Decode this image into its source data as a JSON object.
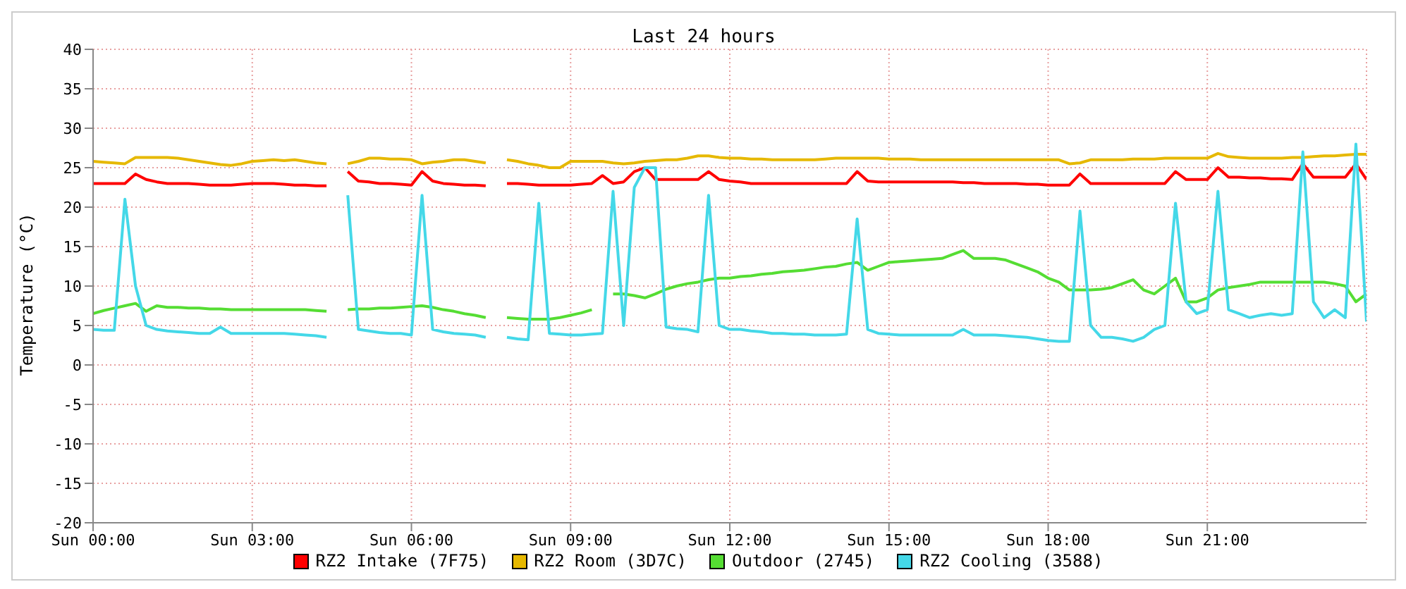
{
  "chart_data": {
    "type": "line",
    "title": "Last 24 hours",
    "ylabel": "Temperature (°C)",
    "categories": [
      "Sun 00:00",
      null,
      null,
      null,
      null,
      null,
      null,
      null,
      null,
      null,
      null,
      null,
      null,
      null,
      null,
      "Sun 03:00",
      null,
      null,
      null,
      null,
      null,
      null,
      null,
      null,
      null,
      null,
      null,
      null,
      null,
      null,
      "Sun 06:00",
      null,
      null,
      null,
      null,
      null,
      null,
      null,
      null,
      null,
      null,
      null,
      null,
      null,
      null,
      "Sun 09:00",
      null,
      null,
      null,
      null,
      null,
      null,
      null,
      null,
      null,
      null,
      null,
      null,
      null,
      null,
      "Sun 12:00",
      null,
      null,
      null,
      null,
      null,
      null,
      null,
      null,
      null,
      null,
      null,
      null,
      null,
      null,
      "Sun 15:00",
      null,
      null,
      null,
      null,
      null,
      null,
      null,
      null,
      null,
      null,
      null,
      null,
      null,
      null,
      "Sun 18:00",
      null,
      null,
      null,
      null,
      null,
      null,
      null,
      null,
      null,
      null,
      null,
      null,
      null,
      null,
      "Sun 21:00",
      null,
      null,
      null,
      null,
      null,
      null,
      null,
      null,
      null,
      null,
      null,
      null,
      null,
      null,
      null
    ],
    "ylim": [
      -20,
      40
    ],
    "yticks": [
      -20,
      -15,
      -10,
      -5,
      0,
      5,
      10,
      15,
      20,
      25,
      30,
      35,
      40
    ],
    "grid": true,
    "legend": "bottom",
    "marker": "none",
    "line_style": "solid",
    "series": [
      {
        "name": "RZ2 Intake (7F75)",
        "color": "#ff0000",
        "values": [
          23,
          23,
          23,
          23,
          24.2,
          23.5,
          23.2,
          23,
          23,
          23,
          22.9,
          22.8,
          22.8,
          22.8,
          22.9,
          23,
          23,
          23,
          22.9,
          22.8,
          22.8,
          22.7,
          22.7,
          null,
          24.5,
          23.3,
          23.2,
          23,
          23,
          22.9,
          22.8,
          24.5,
          23.3,
          23,
          22.9,
          22.8,
          22.8,
          22.7,
          null,
          23,
          23,
          22.9,
          22.8,
          22.8,
          22.8,
          22.8,
          22.9,
          23,
          24,
          23,
          23.2,
          24.5,
          25,
          23.5,
          23.5,
          23.5,
          23.5,
          23.5,
          24.5,
          23.5,
          23.3,
          23.2,
          23,
          23,
          23,
          23,
          23,
          23,
          23,
          23,
          23,
          23,
          24.5,
          23.3,
          23.2,
          23.2,
          23.2,
          23.2,
          23.2,
          23.2,
          23.2,
          23.2,
          23.1,
          23.1,
          23,
          23,
          23,
          23,
          22.9,
          22.9,
          22.8,
          22.8,
          22.8,
          24.2,
          23,
          23,
          23,
          23,
          23,
          23,
          23,
          23,
          24.5,
          23.5,
          23.5,
          23.5,
          25,
          23.8,
          23.8,
          23.7,
          23.7,
          23.6,
          23.6,
          23.5,
          25.5,
          23.8,
          23.8,
          23.8,
          23.8,
          25.5,
          23.5
        ]
      },
      {
        "name": "RZ2 Room (3D7C)",
        "color": "#e6b800",
        "values": [
          25.8,
          25.7,
          25.6,
          25.5,
          26.3,
          26.3,
          26.3,
          26.3,
          26.2,
          26,
          25.8,
          25.6,
          25.4,
          25.3,
          25.5,
          25.8,
          25.9,
          26,
          25.9,
          26,
          25.8,
          25.6,
          25.5,
          null,
          25.5,
          25.8,
          26.2,
          26.2,
          26.1,
          26.1,
          26,
          25.5,
          25.7,
          25.8,
          26,
          26,
          25.8,
          25.6,
          null,
          26,
          25.8,
          25.5,
          25.3,
          25,
          25,
          25.8,
          25.8,
          25.8,
          25.8,
          25.6,
          25.5,
          25.6,
          25.8,
          25.9,
          26,
          26,
          26.2,
          26.5,
          26.5,
          26.3,
          26.2,
          26.2,
          26.1,
          26.1,
          26,
          26,
          26,
          26,
          26,
          26.1,
          26.2,
          26.2,
          26.2,
          26.2,
          26.2,
          26.1,
          26.1,
          26.1,
          26,
          26,
          26,
          26,
          26,
          26,
          26,
          26,
          26,
          26,
          26,
          26,
          26,
          26,
          25.5,
          25.6,
          26,
          26,
          26,
          26,
          26.1,
          26.1,
          26.1,
          26.2,
          26.2,
          26.2,
          26.2,
          26.2,
          26.8,
          26.4,
          26.3,
          26.2,
          26.2,
          26.2,
          26.2,
          26.3,
          26.3,
          26.4,
          26.5,
          26.5,
          26.6,
          26.7,
          26.7
        ]
      },
      {
        "name": "Outdoor (2745)",
        "color": "#55dd33",
        "values": [
          6.5,
          6.9,
          7.2,
          7.5,
          7.8,
          6.8,
          7.5,
          7.3,
          7.3,
          7.2,
          7.2,
          7.1,
          7.1,
          7,
          7,
          7,
          7,
          7,
          7,
          7,
          7,
          6.9,
          6.8,
          null,
          7,
          7.1,
          7.1,
          7.2,
          7.2,
          7.3,
          7.4,
          7.5,
          7.3,
          7,
          6.8,
          6.5,
          6.3,
          6,
          null,
          6,
          5.9,
          5.8,
          5.8,
          5.8,
          6,
          6.3,
          6.6,
          7,
          null,
          9,
          9,
          8.8,
          8.5,
          9,
          9.6,
          10,
          10.3,
          10.5,
          10.8,
          11,
          11,
          11.2,
          11.3,
          11.5,
          11.6,
          11.8,
          11.9,
          12,
          12.2,
          12.4,
          12.5,
          12.8,
          13,
          12,
          12.5,
          13,
          13.1,
          13.2,
          13.3,
          13.4,
          13.5,
          14,
          14.5,
          13.5,
          13.5,
          13.5,
          13.3,
          12.8,
          12.3,
          11.8,
          11,
          10.5,
          9.5,
          9.5,
          9.5,
          9.6,
          9.8,
          10.3,
          10.8,
          9.5,
          9,
          10,
          11,
          8,
          8,
          8.5,
          9.5,
          9.8,
          10,
          10.2,
          10.5,
          10.5,
          10.5,
          10.5,
          10.5,
          10.5,
          10.5,
          10.3,
          10,
          8,
          9
        ]
      },
      {
        "name": "RZ2 Cooling (3588)",
        "color": "#44d8e8",
        "values": [
          4.5,
          4.4,
          4.4,
          21,
          10,
          5,
          4.5,
          4.3,
          4.2,
          4.1,
          4,
          4,
          4.8,
          4,
          4,
          4,
          4,
          4,
          4,
          3.9,
          3.8,
          3.7,
          3.5,
          null,
          21.5,
          4.5,
          4.3,
          4.1,
          4,
          4,
          3.8,
          21.5,
          4.5,
          4.2,
          4,
          3.9,
          3.8,
          3.5,
          null,
          3.5,
          3.3,
          3.2,
          20.5,
          4,
          3.9,
          3.8,
          3.8,
          3.9,
          4,
          22,
          5,
          22.5,
          25,
          25,
          4.8,
          4.6,
          4.5,
          4.2,
          21.5,
          5,
          4.5,
          4.5,
          4.3,
          4.2,
          4,
          4,
          3.9,
          3.9,
          3.8,
          3.8,
          3.8,
          3.9,
          18.5,
          4.5,
          4,
          3.9,
          3.8,
          3.8,
          3.8,
          3.8,
          3.8,
          3.8,
          4.5,
          3.8,
          3.8,
          3.8,
          3.7,
          3.6,
          3.5,
          3.3,
          3.1,
          3,
          3,
          19.5,
          5,
          3.5,
          3.5,
          3.3,
          3,
          3.5,
          4.5,
          5,
          20.5,
          8,
          6.5,
          7,
          22,
          7,
          6.5,
          6,
          6.3,
          6.5,
          6.3,
          6.5,
          27,
          8,
          6,
          7,
          6,
          28,
          5.5
        ]
      }
    ]
  }
}
